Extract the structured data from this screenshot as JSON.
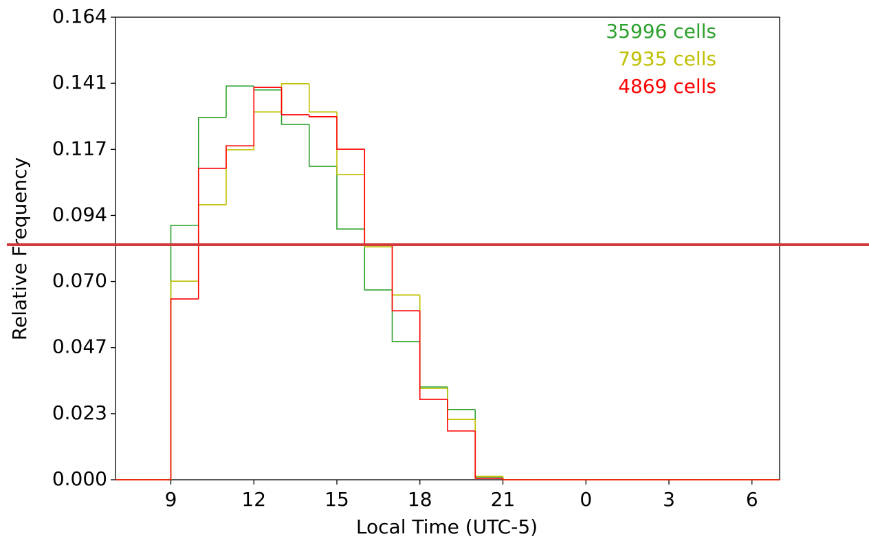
{
  "chart_data": {
    "type": "histogram",
    "x_label": "Local Time (UTC-5)",
    "y_label": "Relative Frequency",
    "bins": [
      7,
      8,
      9,
      10,
      11,
      12,
      13,
      14,
      15,
      16,
      17,
      18,
      19,
      20,
      21,
      22,
      23,
      24,
      25,
      26,
      27,
      28,
      29,
      30,
      31
    ],
    "series": [
      {
        "name": "35996 cells",
        "color": "#2ca02c",
        "values": [
          0,
          0,
          0.0902,
          0.1284,
          0.1396,
          0.1382,
          0.126,
          0.1111,
          0.0889,
          0.0673,
          0.049,
          0.0329,
          0.0249,
          0.001,
          0,
          0,
          0,
          0,
          0,
          0,
          0,
          0,
          0,
          0
        ]
      },
      {
        "name": "7935 cells",
        "color": "#bfbf00",
        "values": [
          0,
          0,
          0.0704,
          0.0975,
          0.117,
          0.1304,
          0.1404,
          0.1304,
          0.1082,
          0.0826,
          0.0655,
          0.0324,
          0.0214,
          0.0012,
          0,
          0,
          0,
          0,
          0,
          0,
          0,
          0,
          0,
          0
        ]
      },
      {
        "name": "4869 cells",
        "color": "#ff0000",
        "values": [
          0,
          0,
          0.0641,
          0.1104,
          0.1184,
          0.1391,
          0.1294,
          0.1287,
          0.1172,
          0.0836,
          0.0599,
          0.0285,
          0.0173,
          0.0005,
          0,
          0,
          0,
          0,
          0,
          0,
          0,
          0,
          0,
          0
        ]
      }
    ],
    "xlim": [
      7,
      31
    ],
    "xticks": [
      9,
      12,
      15,
      18,
      21,
      {
        "value": 24,
        "label": "0"
      },
      {
        "value": 27,
        "label": "3"
      },
      {
        "value": 30,
        "label": "6"
      }
    ],
    "ylim": [
      0,
      0.164
    ],
    "yticks": [
      {
        "value": 0,
        "label": "0.000"
      },
      {
        "value": 0.02343,
        "label": "0.023"
      },
      {
        "value": 0.04686,
        "label": "0.047"
      },
      {
        "value": 0.07029,
        "label": "0.070"
      },
      {
        "value": 0.09371,
        "label": "0.094"
      },
      {
        "value": 0.11714,
        "label": "0.117"
      },
      {
        "value": 0.14057,
        "label": "0.141"
      },
      {
        "value": 0.164,
        "label": "0.164"
      }
    ],
    "legend_position": "upper right"
  }
}
